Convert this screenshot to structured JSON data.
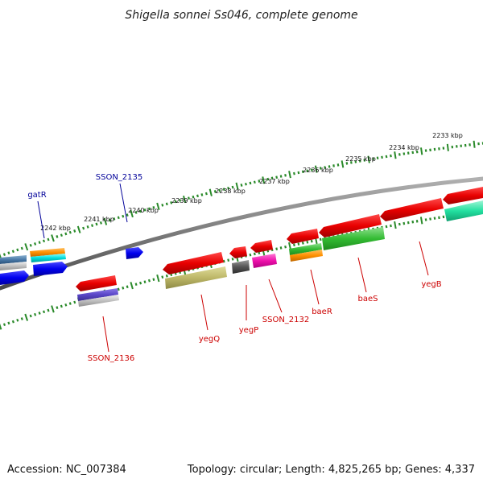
{
  "title": "Shigella sonnei Ss046, complete genome",
  "footer": {
    "accession": "Accession: NC_007384",
    "topology": "Topology: circular; Length: 4,825,265 bp; Genes: 4,337"
  },
  "ticks": [
    {
      "label": "2233 kbp"
    },
    {
      "label": "2234 kbp"
    },
    {
      "label": "2235 kbp"
    },
    {
      "label": "2236 kbp"
    },
    {
      "label": "2237 kbp"
    },
    {
      "label": "2238 kbp"
    },
    {
      "label": "2239 kbp"
    },
    {
      "label": "2240 kbp"
    },
    {
      "label": "2241 kbp"
    },
    {
      "label": "2242 kbp"
    }
  ],
  "genes": [
    {
      "name": "gatR",
      "color": "#000099"
    },
    {
      "name": "SSON_2135",
      "color": "#000099"
    },
    {
      "name": "SSON_2136",
      "color": "#cc0000"
    },
    {
      "name": "yegQ",
      "color": "#cc0000"
    },
    {
      "name": "yegP",
      "color": "#cc0000"
    },
    {
      "name": "SSON_2132",
      "color": "#cc0000"
    },
    {
      "name": "baeR",
      "color": "#cc0000"
    },
    {
      "name": "baeS",
      "color": "#cc0000"
    },
    {
      "name": "yegB",
      "color": "#cc0000"
    }
  ]
}
